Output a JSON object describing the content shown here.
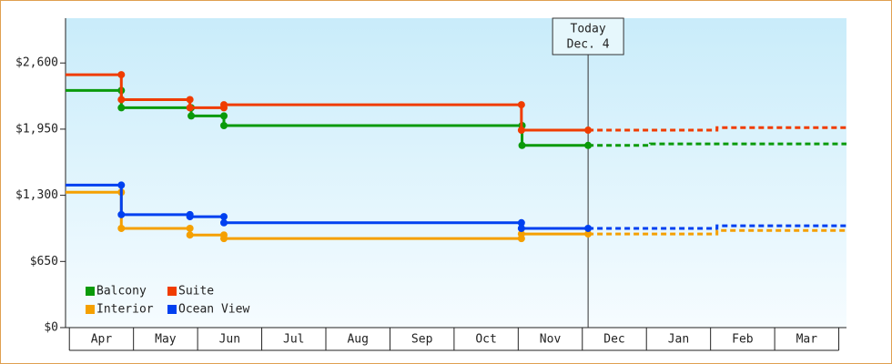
{
  "chart_data": {
    "type": "step-line",
    "categories": [
      "Apr",
      "May",
      "Jun",
      "Jul",
      "Aug",
      "Sep",
      "Oct",
      "Nov",
      "Dec",
      "Jan",
      "Feb",
      "Mar"
    ],
    "xlim": [
      -0.06,
      12.12
    ],
    "ylim": [
      0,
      3040
    ],
    "yticks": [
      {
        "value": 0,
        "label": "$0"
      },
      {
        "value": 650,
        "label": "$650"
      },
      {
        "value": 1300,
        "label": "$1,300"
      },
      {
        "value": 1950,
        "label": "$1,950"
      },
      {
        "value": 2600,
        "label": "$2,600"
      }
    ],
    "annotation": {
      "lines": [
        "Today",
        "Dec. 4"
      ],
      "x": 8.09
    },
    "legend": "lower left",
    "series": [
      {
        "name": "Balcony",
        "color": "#0a9a0a",
        "x": [
          -0.06,
          0.81,
          0.81,
          1.9,
          1.9,
          2.41,
          2.41,
          7.06,
          7.06,
          8.09,
          9.06,
          9.06,
          12.12
        ],
        "values": [
          2330,
          2330,
          2160,
          2160,
          2080,
          2080,
          1985,
          1985,
          1790,
          1790,
          1790,
          1805,
          1805
        ]
      },
      {
        "name": "Suite",
        "color": "#f03c00",
        "x": [
          -0.06,
          0.81,
          0.81,
          1.88,
          1.88,
          2.41,
          2.41,
          7.05,
          7.05,
          8.09,
          10.1,
          10.1,
          12.12
        ],
        "values": [
          2485,
          2485,
          2240,
          2240,
          2160,
          2160,
          2190,
          2190,
          1940,
          1940,
          1940,
          1965,
          1965
        ]
      },
      {
        "name": "Interior",
        "color": "#f5a000",
        "x": [
          -0.06,
          0.81,
          0.81,
          1.88,
          1.88,
          2.41,
          2.41,
          7.05,
          7.05,
          8.09,
          10.1,
          10.1,
          12.12
        ],
        "values": [
          1330,
          1330,
          975,
          975,
          910,
          910,
          875,
          875,
          920,
          920,
          920,
          955,
          955
        ]
      },
      {
        "name": "Ocean View",
        "color": "#0040f0",
        "x": [
          -0.06,
          0.81,
          0.81,
          1.88,
          1.88,
          2.41,
          2.41,
          7.05,
          7.05,
          8.09,
          10.1,
          10.1,
          12.12
        ],
        "values": [
          1400,
          1400,
          1110,
          1110,
          1090,
          1090,
          1030,
          1030,
          975,
          975,
          975,
          1000,
          1000
        ]
      }
    ]
  }
}
